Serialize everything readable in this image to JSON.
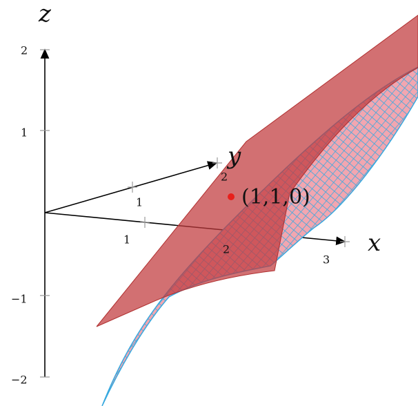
{
  "axes": {
    "x": {
      "label": "x",
      "ticks": [
        "1",
        "2",
        "3"
      ]
    },
    "y": {
      "label": "y",
      "ticks": [
        "1",
        "2"
      ]
    },
    "z": {
      "label": "z",
      "ticks": [
        "2",
        "1",
        "−1",
        "−2"
      ]
    }
  },
  "point": {
    "label": "(1,1,0)"
  }
}
